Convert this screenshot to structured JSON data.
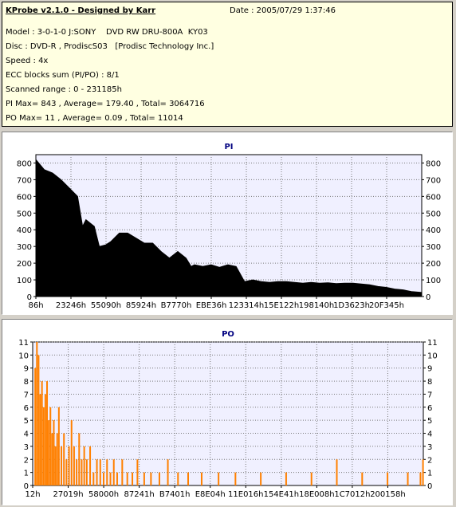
{
  "header": {
    "title": "KProbe v2.1.0 - Designed by Karr",
    "date": "Date : 2005/07/29 1:37:46",
    "model": "Model : 3-0-1-0 J:SONY    DVD RW DRU-800A  KY03",
    "disc": "Disc : DVD-R , ProdiscS03   [Prodisc Technology Inc.]",
    "speed": "Speed : 4x",
    "ecc": "ECC blocks sum (PI/PO) : 8/1",
    "range": "Scanned range : 0 - 231185h",
    "pi_stats": "PI Max= 843 , Average= 179.40 , Total= 3064716",
    "po_stats": "PO Max= 11 , Average= 0.09 , Total= 11014"
  },
  "chart_data": [
    {
      "type": "area",
      "title": "PI",
      "ylim": [
        0,
        850
      ],
      "yticks": [
        0,
        100,
        200,
        300,
        400,
        500,
        600,
        700,
        800
      ],
      "xlim": [
        0,
        231185
      ],
      "xtick_labels": [
        "86h",
        "23246h",
        "55090h",
        "85924h",
        "B7770h",
        "EBE36h",
        "123314h",
        "15E122h",
        "198140h",
        "1D3623h",
        "20F345h"
      ],
      "grid": true,
      "color": "#000000",
      "series": [
        {
          "x": [
            0,
            5000,
            10000,
            15000,
            20000,
            25000,
            28000,
            30000,
            35000,
            38000,
            42000,
            45000,
            50000,
            55000,
            60000,
            65000,
            70000,
            75000,
            80000,
            85000,
            90000,
            93000,
            95000,
            100000,
            105000,
            110000,
            115000,
            120000,
            125000,
            130000,
            135000,
            140000,
            145000,
            150000,
            155000,
            160000,
            165000,
            170000,
            175000,
            180000,
            185000,
            190000,
            195000,
            200000,
            205000,
            210000,
            215000,
            220000,
            225000,
            231185
          ],
          "y": [
            820,
            760,
            740,
            700,
            650,
            600,
            420,
            460,
            420,
            300,
            310,
            330,
            380,
            380,
            350,
            320,
            320,
            270,
            230,
            270,
            230,
            180,
            190,
            180,
            190,
            175,
            190,
            180,
            90,
            100,
            90,
            85,
            90,
            90,
            85,
            80,
            85,
            80,
            82,
            78,
            80,
            80,
            75,
            70,
            60,
            55,
            45,
            40,
            30,
            25
          ]
        }
      ]
    },
    {
      "type": "bar",
      "title": "PO",
      "ylim": [
        0,
        11
      ],
      "yticks": [
        0,
        1,
        2,
        3,
        4,
        5,
        6,
        7,
        8,
        9,
        10,
        11
      ],
      "xlim": [
        0,
        231185
      ],
      "xtick_labels": [
        "12h",
        "27019h",
        "58000h",
        "87241h",
        "B7401h",
        "E8E04h",
        "11E016h",
        "154E41h",
        "18E008h",
        "1C7012h",
        "200158h"
      ],
      "grid": true,
      "color": "#ff8000",
      "series": [
        {
          "x": [
            1500,
            2500,
            3500,
            4500,
            5500,
            6500,
            7500,
            8500,
            9500,
            10500,
            11500,
            12500,
            13500,
            14500,
            15500,
            17000,
            18500,
            20000,
            21500,
            23000,
            24500,
            26000,
            27500,
            29000,
            30500,
            32000,
            34000,
            36000,
            38000,
            40000,
            42000,
            44000,
            46000,
            48000,
            50000,
            53000,
            56000,
            59000,
            62000,
            66000,
            70000,
            75000,
            80000,
            86000,
            92000,
            100000,
            110000,
            120000,
            135000,
            150000,
            165000,
            180000,
            195000,
            210000,
            222000,
            229500,
            231000
          ],
          "y": [
            9,
            11,
            10,
            7,
            8,
            6,
            7,
            8,
            5,
            6,
            4,
            5,
            3,
            4,
            6,
            3,
            4,
            2,
            3,
            5,
            3,
            2,
            4,
            2,
            3,
            2,
            3,
            1,
            2,
            2,
            1,
            2,
            1,
            2,
            1,
            2,
            1,
            1,
            2,
            1,
            1,
            1,
            2,
            1,
            1,
            1,
            1,
            1,
            1,
            1,
            1,
            2,
            1,
            1,
            1,
            1,
            2
          ]
        }
      ]
    }
  ]
}
